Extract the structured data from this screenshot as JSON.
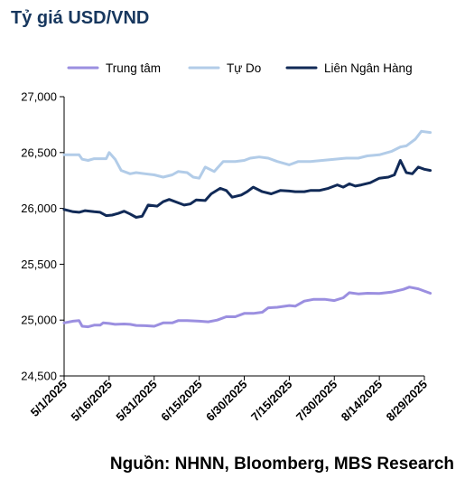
{
  "chart_data": {
    "type": "line",
    "title": "Tỷ giá USD/VND",
    "source": "Nguồn: NHNN, Bloomberg, MBS Research",
    "xlabel": "",
    "ylabel": "",
    "ylim": [
      24500,
      27000
    ],
    "yticks": [
      "24,500",
      "25,000",
      "25,500",
      "26,000",
      "26,500",
      "27,000"
    ],
    "xticks": [
      "5/1/2025",
      "5/16/2025",
      "5/31/2025",
      "6/15/2025",
      "6/30/2025",
      "7/15/2025",
      "7/30/2025",
      "8/14/2025",
      "8/29/2025"
    ],
    "xlim": [
      "2025-05-01",
      "2025-08-29"
    ],
    "grid": false,
    "legend_position": "top",
    "series": [
      {
        "name": "Trung tâm",
        "color": "#9b8fe0",
        "points": [
          [
            "2025-05-01",
            24975
          ],
          [
            "2025-05-04",
            24990
          ],
          [
            "2025-05-06",
            24995
          ],
          [
            "2025-05-07",
            24945
          ],
          [
            "2025-05-09",
            24940
          ],
          [
            "2025-05-11",
            24955
          ],
          [
            "2025-05-13",
            24955
          ],
          [
            "2025-05-14",
            24975
          ],
          [
            "2025-05-16",
            24970
          ],
          [
            "2025-05-18",
            24962
          ],
          [
            "2025-05-21",
            24965
          ],
          [
            "2025-05-23",
            24962
          ],
          [
            "2025-05-25",
            24952
          ],
          [
            "2025-05-28",
            24950
          ],
          [
            "2025-05-31",
            24945
          ],
          [
            "2025-06-03",
            24975
          ],
          [
            "2025-06-06",
            24975
          ],
          [
            "2025-06-08",
            24995
          ],
          [
            "2025-06-11",
            24995
          ],
          [
            "2025-06-15",
            24990
          ],
          [
            "2025-06-18",
            24985
          ],
          [
            "2025-06-21",
            25000
          ],
          [
            "2025-06-24",
            25030
          ],
          [
            "2025-06-27",
            25030
          ],
          [
            "2025-06-30",
            25060
          ],
          [
            "2025-07-03",
            25060
          ],
          [
            "2025-07-06",
            25070
          ],
          [
            "2025-07-08",
            25110
          ],
          [
            "2025-07-11",
            25115
          ],
          [
            "2025-07-15",
            25130
          ],
          [
            "2025-07-17",
            25125
          ],
          [
            "2025-07-20",
            25170
          ],
          [
            "2025-07-23",
            25185
          ],
          [
            "2025-07-27",
            25185
          ],
          [
            "2025-07-30",
            25175
          ],
          [
            "2025-08-02",
            25200
          ],
          [
            "2025-08-04",
            25245
          ],
          [
            "2025-08-07",
            25235
          ],
          [
            "2025-08-10",
            25240
          ],
          [
            "2025-08-14",
            25238
          ],
          [
            "2025-08-18",
            25250
          ],
          [
            "2025-08-22",
            25275
          ],
          [
            "2025-08-24",
            25295
          ],
          [
            "2025-08-27",
            25280
          ],
          [
            "2025-08-29",
            25260
          ],
          [
            "2025-08-31",
            25240
          ]
        ]
      },
      {
        "name": "Tự Do",
        "color": "#b2cce8",
        "points": [
          [
            "2025-05-01",
            26480
          ],
          [
            "2025-05-06",
            26480
          ],
          [
            "2025-05-07",
            26440
          ],
          [
            "2025-05-09",
            26430
          ],
          [
            "2025-05-11",
            26445
          ],
          [
            "2025-05-15",
            26445
          ],
          [
            "2025-05-16",
            26500
          ],
          [
            "2025-05-18",
            26440
          ],
          [
            "2025-05-20",
            26340
          ],
          [
            "2025-05-23",
            26310
          ],
          [
            "2025-05-25",
            26320
          ],
          [
            "2025-05-28",
            26310
          ],
          [
            "2025-05-31",
            26300
          ],
          [
            "2025-06-03",
            26280
          ],
          [
            "2025-06-06",
            26300
          ],
          [
            "2025-06-08",
            26330
          ],
          [
            "2025-06-11",
            26320
          ],
          [
            "2025-06-13",
            26280
          ],
          [
            "2025-06-15",
            26270
          ],
          [
            "2025-06-17",
            26370
          ],
          [
            "2025-06-20",
            26330
          ],
          [
            "2025-06-23",
            26420
          ],
          [
            "2025-06-27",
            26420
          ],
          [
            "2025-06-30",
            26430
          ],
          [
            "2025-07-02",
            26450
          ],
          [
            "2025-07-05",
            26460
          ],
          [
            "2025-07-08",
            26450
          ],
          [
            "2025-07-11",
            26420
          ],
          [
            "2025-07-15",
            26390
          ],
          [
            "2025-07-18",
            26420
          ],
          [
            "2025-07-22",
            26420
          ],
          [
            "2025-07-26",
            26430
          ],
          [
            "2025-07-30",
            26440
          ],
          [
            "2025-08-03",
            26450
          ],
          [
            "2025-08-07",
            26450
          ],
          [
            "2025-08-10",
            26470
          ],
          [
            "2025-08-14",
            26480
          ],
          [
            "2025-08-18",
            26510
          ],
          [
            "2025-08-21",
            26550
          ],
          [
            "2025-08-23",
            26560
          ],
          [
            "2025-08-26",
            26620
          ],
          [
            "2025-08-28",
            26690
          ],
          [
            "2025-08-31",
            26680
          ]
        ]
      },
      {
        "name": "Liên Ngân Hàng",
        "color": "#112a57",
        "points": [
          [
            "2025-05-01",
            25990
          ],
          [
            "2025-05-04",
            25970
          ],
          [
            "2025-05-06",
            25965
          ],
          [
            "2025-05-08",
            25980
          ],
          [
            "2025-05-11",
            25970
          ],
          [
            "2025-05-13",
            25965
          ],
          [
            "2025-05-15",
            25935
          ],
          [
            "2025-05-17",
            25940
          ],
          [
            "2025-05-19",
            25955
          ],
          [
            "2025-05-21",
            25975
          ],
          [
            "2025-05-23",
            25950
          ],
          [
            "2025-05-25",
            25920
          ],
          [
            "2025-05-27",
            25930
          ],
          [
            "2025-05-29",
            26030
          ],
          [
            "2025-06-01",
            26020
          ],
          [
            "2025-06-03",
            26060
          ],
          [
            "2025-06-05",
            26080
          ],
          [
            "2025-06-08",
            26050
          ],
          [
            "2025-06-10",
            26030
          ],
          [
            "2025-06-12",
            26040
          ],
          [
            "2025-06-14",
            26075
          ],
          [
            "2025-06-17",
            26070
          ],
          [
            "2025-06-19",
            26130
          ],
          [
            "2025-06-22",
            26180
          ],
          [
            "2025-06-24",
            26160
          ],
          [
            "2025-06-26",
            26100
          ],
          [
            "2025-06-29",
            26120
          ],
          [
            "2025-07-01",
            26150
          ],
          [
            "2025-07-03",
            26190
          ],
          [
            "2025-07-06",
            26150
          ],
          [
            "2025-07-09",
            26130
          ],
          [
            "2025-07-12",
            26160
          ],
          [
            "2025-07-15",
            26155
          ],
          [
            "2025-07-17",
            26150
          ],
          [
            "2025-07-20",
            26150
          ],
          [
            "2025-07-22",
            26160
          ],
          [
            "2025-07-25",
            26160
          ],
          [
            "2025-07-28",
            26180
          ],
          [
            "2025-07-31",
            26210
          ],
          [
            "2025-08-02",
            26190
          ],
          [
            "2025-08-04",
            26220
          ],
          [
            "2025-08-06",
            26200
          ],
          [
            "2025-08-08",
            26210
          ],
          [
            "2025-08-11",
            26230
          ],
          [
            "2025-08-14",
            26270
          ],
          [
            "2025-08-17",
            26280
          ],
          [
            "2025-08-19",
            26300
          ],
          [
            "2025-08-21",
            26430
          ],
          [
            "2025-08-23",
            26320
          ],
          [
            "2025-08-25",
            26310
          ],
          [
            "2025-08-27",
            26370
          ],
          [
            "2025-08-29",
            26350
          ],
          [
            "2025-08-31",
            26340
          ]
        ]
      }
    ]
  }
}
